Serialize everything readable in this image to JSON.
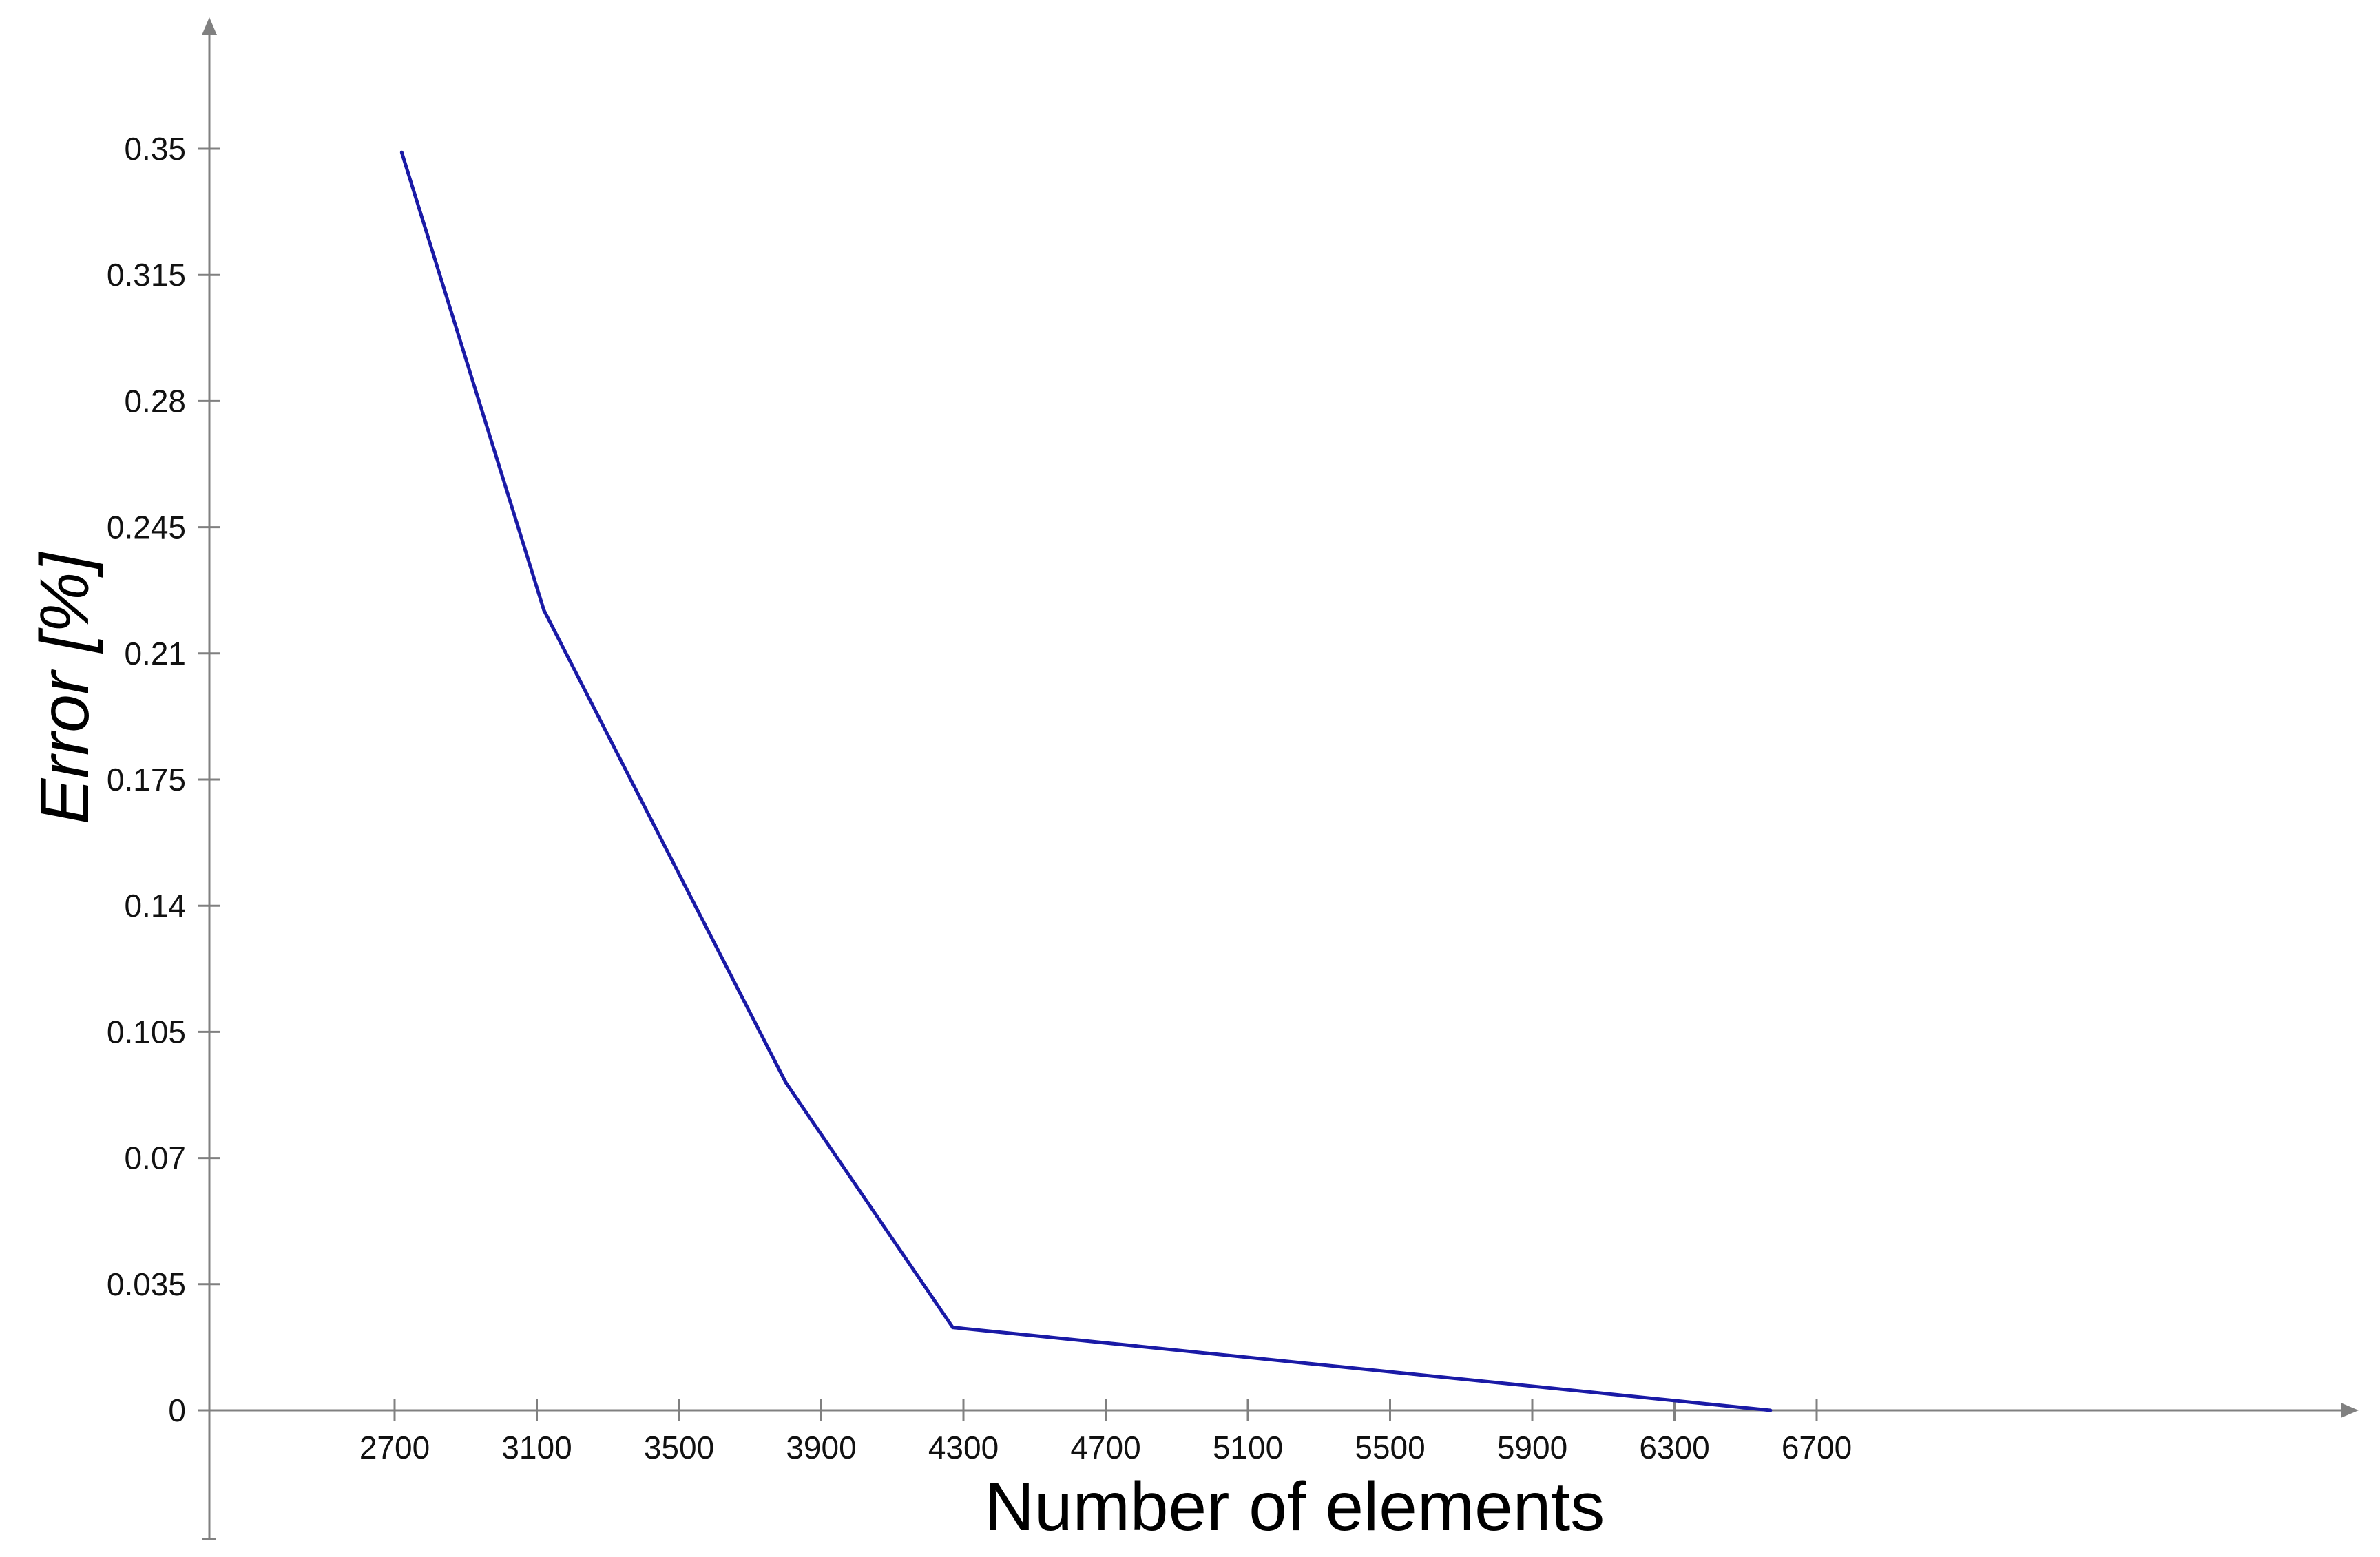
{
  "chart_data": {
    "type": "line",
    "title": "",
    "xlabel": "Number of elements",
    "ylabel": "Error [%]",
    "xlim": [
      2150,
      6950
    ],
    "ylim": [
      -0.035,
      0.385
    ],
    "x_ticks": [
      "2700",
      "3100",
      "3500",
      "3900",
      "4300",
      "4700",
      "5100",
      "5500",
      "5900",
      "6300",
      "6700"
    ],
    "y_ticks": [
      "0",
      "0.035",
      "0.07",
      "0.105",
      "0.14",
      "0.175",
      "0.21",
      "0.245",
      "0.28",
      "0.315",
      "0.35"
    ],
    "grid": false,
    "legend": "none",
    "series": [
      {
        "color": "#1a1aa6",
        "points": [
          {
            "x": 2720,
            "y": 0.349
          },
          {
            "x": 3120,
            "y": 0.222
          },
          {
            "x": 3800,
            "y": 0.091
          },
          {
            "x": 4270,
            "y": 0.023
          },
          {
            "x": 6570,
            "y": 0.0
          }
        ]
      }
    ],
    "axis_color": "#808080"
  }
}
